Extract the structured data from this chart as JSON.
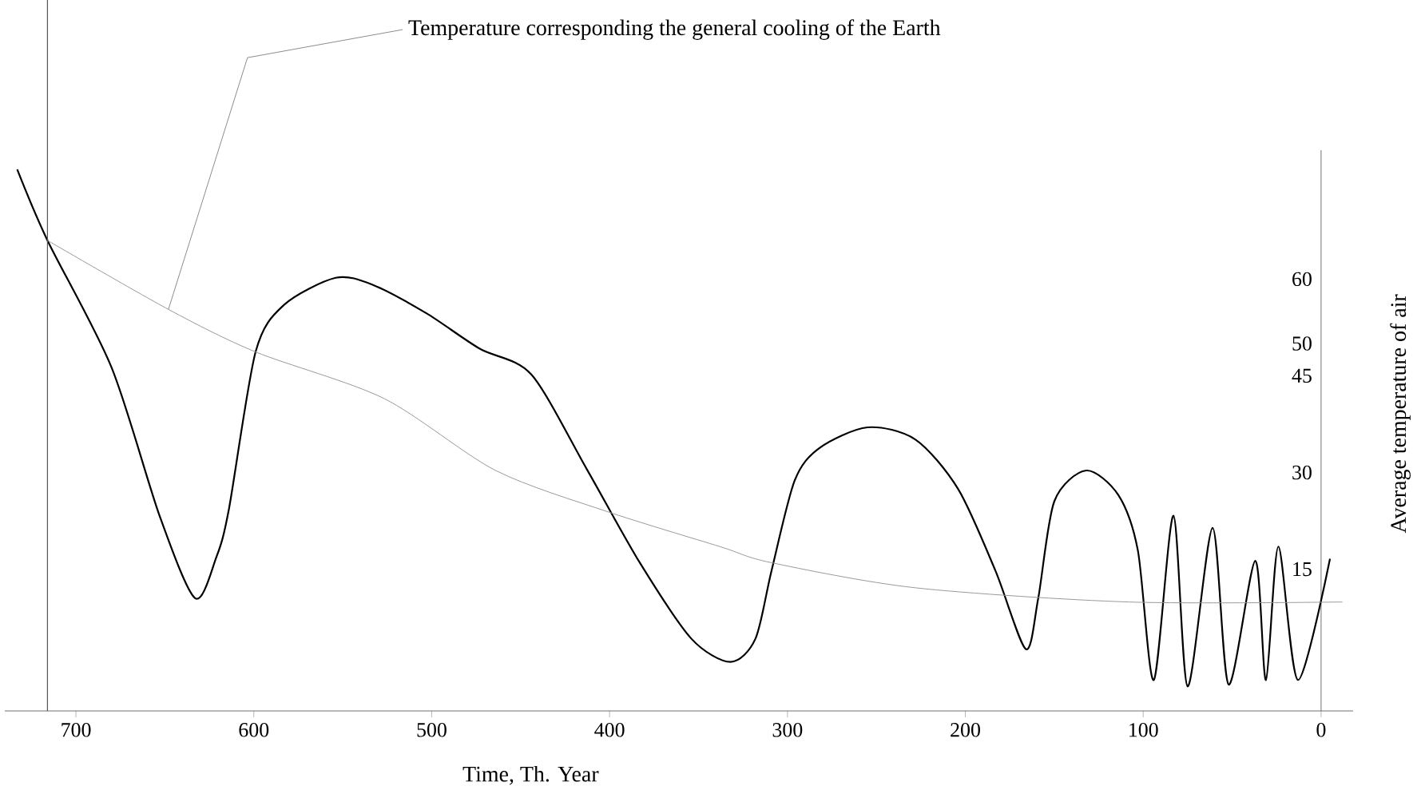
{
  "chart_data": {
    "type": "line",
    "xlabel": "Time, Th. Year",
    "ylabel": "Average temperature of air",
    "xlim": [
      740,
      -18
    ],
    "xticks": [
      700,
      600,
      500,
      400,
      300,
      200,
      100,
      0
    ],
    "ylim": [
      -7,
      80
    ],
    "yticks": [
      15,
      30,
      45,
      50,
      60
    ],
    "grid": false,
    "ref_lines": [
      {
        "axis": "x",
        "value": 716,
        "color": "#555555"
      }
    ],
    "annotations": [
      {
        "text": "Temperature corresponding the general cooling of the Earth",
        "x": 648,
        "y": 55.3
      }
    ],
    "series": [
      {
        "color": "#000000",
        "x": [
          733,
          716,
          680,
          653,
          633,
          621,
          614,
          599,
          583,
          554,
          533,
          503,
          473,
          444,
          413,
          383,
          354,
          332,
          318,
          309,
          296,
          282,
          255,
          228,
          204,
          183,
          166,
          159,
          150,
          132,
          114,
          103,
          94,
          83,
          75,
          61,
          52,
          37,
          31,
          24,
          13,
          -5
        ],
        "values": [
          77,
          66,
          46.3,
          23.3,
          10.5,
          16.9,
          24.3,
          48.7,
          56,
          60.2,
          59.1,
          54.7,
          49.2,
          45.2,
          30.6,
          16,
          4.2,
          0.6,
          4.2,
          14.7,
          28.7,
          33.8,
          37,
          35.1,
          27.4,
          14.7,
          2.6,
          10.5,
          25.5,
          30.3,
          26.5,
          17.9,
          -2.2,
          23.3,
          -3.2,
          21.4,
          -2.9,
          16.3,
          -2.2,
          18.5,
          -2.2,
          16.6
        ]
      },
      {
        "color": "#999999",
        "x": [
          716,
          648,
          599,
          527,
          464,
          401,
          338,
          309,
          228,
          108,
          -12
        ],
        "values": [
          66,
          55.3,
          48.7,
          41.5,
          30.3,
          23.9,
          18.5,
          16,
          12.1,
          9.9,
          9.9
        ]
      }
    ]
  }
}
